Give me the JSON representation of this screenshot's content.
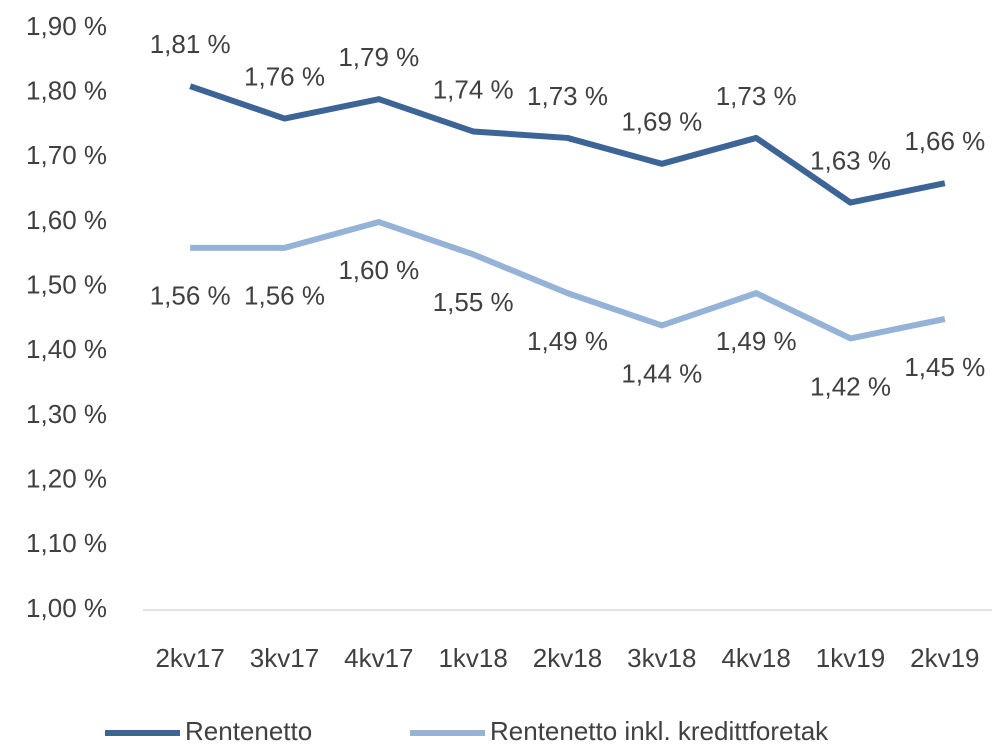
{
  "chart_data": {
    "type": "line",
    "categories": [
      "2kv17",
      "3kv17",
      "4kv17",
      "1kv18",
      "2kv18",
      "3kv18",
      "4kv18",
      "1kv19",
      "2kv19"
    ],
    "series": [
      {
        "name": "Rentenetto",
        "color": "#3d6496",
        "values": [
          1.81,
          1.76,
          1.79,
          1.74,
          1.73,
          1.69,
          1.73,
          1.63,
          1.66
        ],
        "value_labels": [
          "1,81 %",
          "1,76 %",
          "1,79 %",
          "1,74 %",
          "1,73 %",
          "1,69 %",
          "1,73 %",
          "1,63 %",
          "1,66 %"
        ]
      },
      {
        "name": "Rentenetto inkl. kredittforetak",
        "color": "#95b3d7",
        "values": [
          1.56,
          1.56,
          1.6,
          1.55,
          1.49,
          1.44,
          1.49,
          1.42,
          1.45
        ],
        "value_labels": [
          "1,56 %",
          "1,56 %",
          "1,60 %",
          "1,55 %",
          "1,49 %",
          "1,44 %",
          "1,49 %",
          "1,42 %",
          "1,45 %"
        ]
      }
    ],
    "ylim": [
      1.0,
      1.9
    ],
    "yticks": [
      {
        "value": 1.0,
        "label": "1,00 %"
      },
      {
        "value": 1.1,
        "label": "1,10 %"
      },
      {
        "value": 1.2,
        "label": "1,20 %"
      },
      {
        "value": 1.3,
        "label": "1,30 %"
      },
      {
        "value": 1.4,
        "label": "1,40 %"
      },
      {
        "value": 1.5,
        "label": "1,50 %"
      },
      {
        "value": 1.6,
        "label": "1,60 %"
      },
      {
        "value": 1.7,
        "label": "1,70 %"
      },
      {
        "value": 1.8,
        "label": "1,80 %"
      },
      {
        "value": 1.9,
        "label": "1,90 %"
      }
    ],
    "grid": false,
    "legend": "bottom"
  }
}
